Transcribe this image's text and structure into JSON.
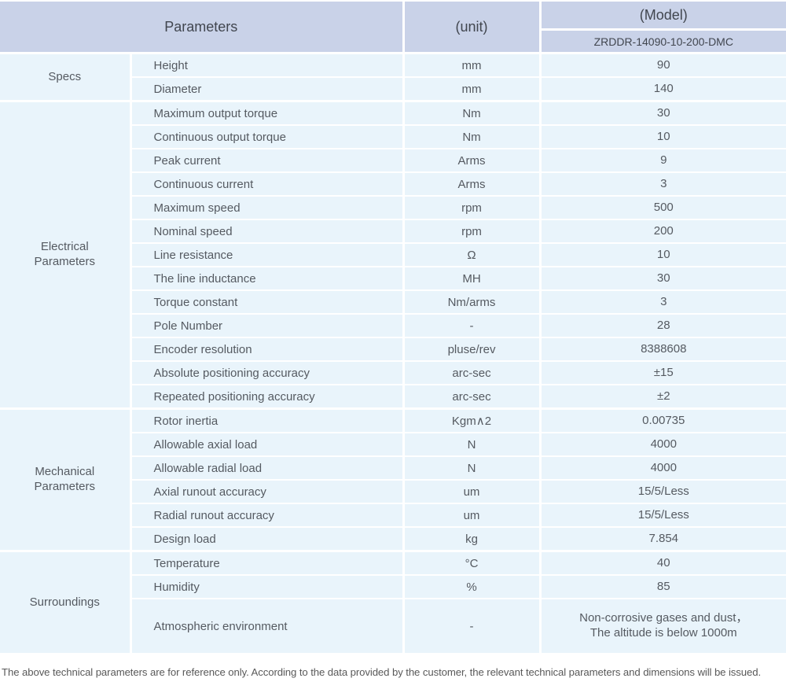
{
  "colors": {
    "header_bg": "#c9d2e8",
    "cell_bg": "#e9f4fb",
    "divider": "#ffffff",
    "header_text": "#41464f",
    "body_text": "#555a61",
    "footer_text": "#595959"
  },
  "header": {
    "parameters": "Parameters",
    "unit": "(unit)",
    "model_label": "(Model)",
    "model_value": "ZRDDR-14090-10-200-DMC"
  },
  "groups": [
    {
      "label": "Specs",
      "rows": [
        {
          "param": "Height",
          "unit": "mm",
          "value": "90"
        },
        {
          "param": "Diameter",
          "unit": "mm",
          "value": "140"
        }
      ]
    },
    {
      "label": "Electrical Parameters",
      "label_lines": [
        "Electrical",
        "Parameters"
      ],
      "rows": [
        {
          "param": "Maximum output torque",
          "unit": "Nm",
          "value": "30"
        },
        {
          "param": "Continuous output torque",
          "unit": "Nm",
          "value": "10"
        },
        {
          "param": "Peak current",
          "unit": "Arms",
          "value": "9"
        },
        {
          "param": "Continuous current",
          "unit": "Arms",
          "value": "3"
        },
        {
          "param": "Maximum speed",
          "unit": "rpm",
          "value": "500"
        },
        {
          "param": "Nominal speed",
          "unit": "rpm",
          "value": "200"
        },
        {
          "param": "Line resistance",
          "unit": "Ω",
          "value": "10"
        },
        {
          "param": "The line inductance",
          "unit": "MH",
          "value": "30"
        },
        {
          "param": "Torque constant",
          "unit": "Nm/arms",
          "value": "3"
        },
        {
          "param": "Pole Number",
          "unit": "-",
          "value": "28"
        },
        {
          "param": "Encoder resolution",
          "unit": "pluse/rev",
          "value": "8388608"
        },
        {
          "param": "Absolute positioning accuracy",
          "unit": "arc-sec",
          "value": "±15"
        },
        {
          "param": "Repeated positioning accuracy",
          "unit": "arc-sec",
          "value": "±2"
        }
      ]
    },
    {
      "label": "Mechanical Parameters",
      "label_lines": [
        "Mechanical",
        "Parameters"
      ],
      "rows": [
        {
          "param": "Rotor inertia",
          "unit": "Kgm∧2",
          "value": "0.00735"
        },
        {
          "param": "Allowable axial load",
          "unit": "N",
          "value": "4000"
        },
        {
          "param": "Allowable radial load",
          "unit": "N",
          "value": "4000"
        },
        {
          "param": "Axial runout accuracy",
          "unit": "um",
          "value": "15/5/Less"
        },
        {
          "param": "Radial runout accuracy",
          "unit": "um",
          "value": "15/5/Less"
        },
        {
          "param": "Design load",
          "unit": "kg",
          "value": "7.854"
        }
      ]
    },
    {
      "label": "Surroundings",
      "rows": [
        {
          "param": "Temperature",
          "unit": "°C",
          "value": "40"
        },
        {
          "param": "Humidity",
          "unit": "%",
          "value": "85"
        },
        {
          "param": "Atmospheric environment",
          "unit": "-",
          "value_lines": [
            "Non-corrosive gases and dust，",
            "The altitude is below 1000m"
          ],
          "tall": true
        }
      ]
    }
  ],
  "footer": {
    "note": "The above technical parameters are for reference only. According to the data provided by the customer, the relevant technical parameters and dimensions will be issued."
  }
}
